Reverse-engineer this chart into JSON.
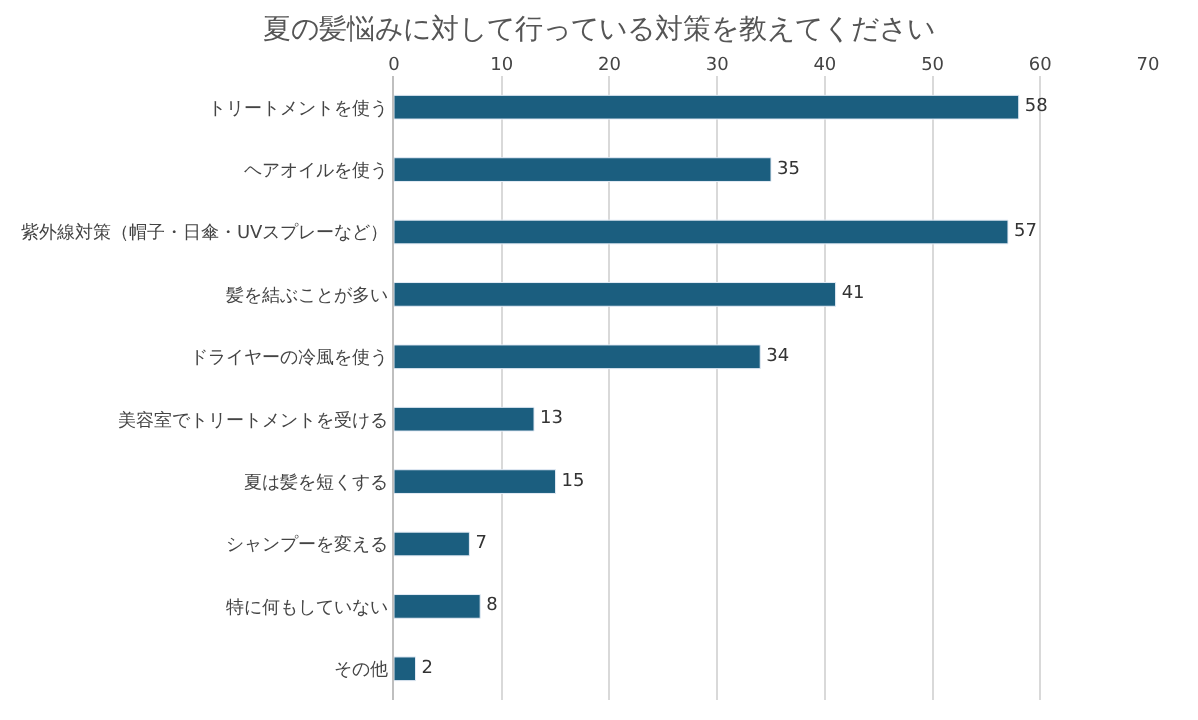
{
  "chart_data": {
    "type": "bar",
    "orientation": "horizontal",
    "title": "夏の髪悩みに対して行っている対策を教えてください",
    "categories": [
      "トリートメントを使う",
      "ヘアオイルを使う",
      "紫外線対策（帽子・日傘・UVスプレーなど）",
      "髪を結ぶことが多い",
      "ドライヤーの冷風を使う",
      "美容室でトリートメントを受ける",
      "夏は髪を短くする",
      "シャンプーを変える",
      "特に何もしていない",
      "その他"
    ],
    "values": [
      58,
      35,
      57,
      41,
      34,
      13,
      15,
      7,
      8,
      2
    ],
    "color": "#1b5e7f",
    "xlim": [
      0,
      70
    ],
    "xticks": [
      0,
      10,
      20,
      30,
      40,
      50,
      60,
      70
    ],
    "grid": "x",
    "data_labels": true
  }
}
